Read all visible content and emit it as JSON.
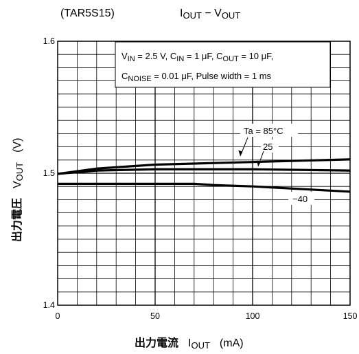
{
  "header": {
    "device": "(TAR5S15)",
    "title_main": "I",
    "title_sub": "OUT",
    "title_dash": " − V",
    "title_sub2": "OUT"
  },
  "conditions": {
    "line1": [
      {
        "t": "V",
        "sub": false
      },
      {
        "t": "IN",
        "sub": true
      },
      {
        "t": " = 2.5 V, C",
        "sub": false
      },
      {
        "t": "IN",
        "sub": true
      },
      {
        "t": " = 1 μF, C",
        "sub": false
      },
      {
        "t": "OUT",
        "sub": true
      },
      {
        "t": " = 10 μF,",
        "sub": false
      }
    ],
    "line2": [
      {
        "t": "C",
        "sub": false
      },
      {
        "t": "NOISE",
        "sub": true
      },
      {
        "t": " = 0.01 μF, Pulse width = 1 ms",
        "sub": false
      }
    ]
  },
  "annotations": {
    "ta85": "Ta = 85°C",
    "t25": "25",
    "tm40": "−40"
  },
  "axes": {
    "xlabel_jp": "出力電流",
    "xlabel_sym": "I",
    "xlabel_sub": "OUT",
    "xlabel_unit": "(mA)",
    "ylabel_jp": "出力電圧",
    "ylabel_sym": "V",
    "ylabel_sub": "OUT",
    "ylabel_unit": "(V)"
  },
  "chart_data": {
    "type": "line",
    "title": "IOUT − VOUT",
    "xlabel": "出力電流 IOUT (mA)",
    "ylabel": "出力電圧 VOUT (V)",
    "xlim": [
      0,
      150
    ],
    "ylim": [
      1.4,
      1.6
    ],
    "x_ticks": [
      0,
      50,
      100,
      150
    ],
    "y_ticks": [
      1.4,
      1.5,
      1.6
    ],
    "x_tick_labels": [
      "0",
      "50",
      "100",
      "150"
    ],
    "y_tick_labels": [
      "1.4",
      "1.5",
      "1.6"
    ],
    "grid": true,
    "x_minor_step": 10,
    "y_minor_step": 0.01,
    "series": [
      {
        "name": "Ta = 85°C",
        "x": [
          0,
          20,
          50,
          100,
          150
        ],
        "y": [
          1.4995,
          1.5035,
          1.5065,
          1.5085,
          1.5105
        ]
      },
      {
        "name": "25",
        "x": [
          0,
          20,
          50,
          100,
          150
        ],
        "y": [
          1.4995,
          1.502,
          1.503,
          1.503,
          1.502
        ]
      },
      {
        "name": "−40",
        "x": [
          0,
          70,
          80,
          100,
          150
        ],
        "y": [
          1.492,
          1.492,
          1.491,
          1.49,
          1.486
        ]
      }
    ]
  }
}
